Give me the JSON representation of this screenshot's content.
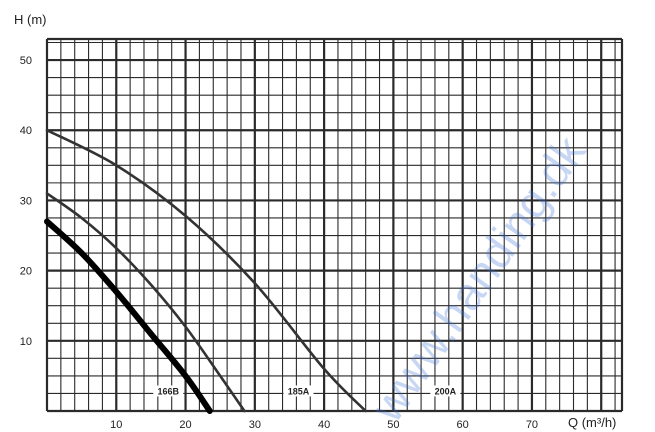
{
  "chart_data": {
    "type": "line",
    "xlabel": "Q (m³/h)",
    "ylabel": "H (m)",
    "xlim": [
      0,
      83
    ],
    "ylim": [
      0,
      53
    ],
    "xticks": [
      "10",
      "20",
      "30",
      "40",
      "50",
      "60",
      "70"
    ],
    "yticks": [
      "10",
      "20",
      "30",
      "40",
      "50"
    ],
    "grid": true,
    "series": [
      {
        "name": "166B",
        "color": "#000000",
        "emphasized": true,
        "x": [
          0,
          5,
          10,
          15,
          20,
          23.5
        ],
        "y": [
          27,
          22.5,
          17,
          11,
          5,
          0
        ]
      },
      {
        "name": "185A",
        "color": "#333333",
        "emphasized": false,
        "x": [
          0,
          5,
          10,
          15,
          20,
          25,
          28.5
        ],
        "y": [
          31,
          27.5,
          23.2,
          18,
          12,
          5,
          0
        ]
      },
      {
        "name": "200A",
        "color": "#333333",
        "emphasized": false,
        "x": [
          0,
          10,
          20,
          30,
          40,
          46
        ],
        "y": [
          40,
          35,
          27.8,
          18.2,
          6,
          0
        ]
      }
    ],
    "watermark": "www.handing.dk"
  }
}
